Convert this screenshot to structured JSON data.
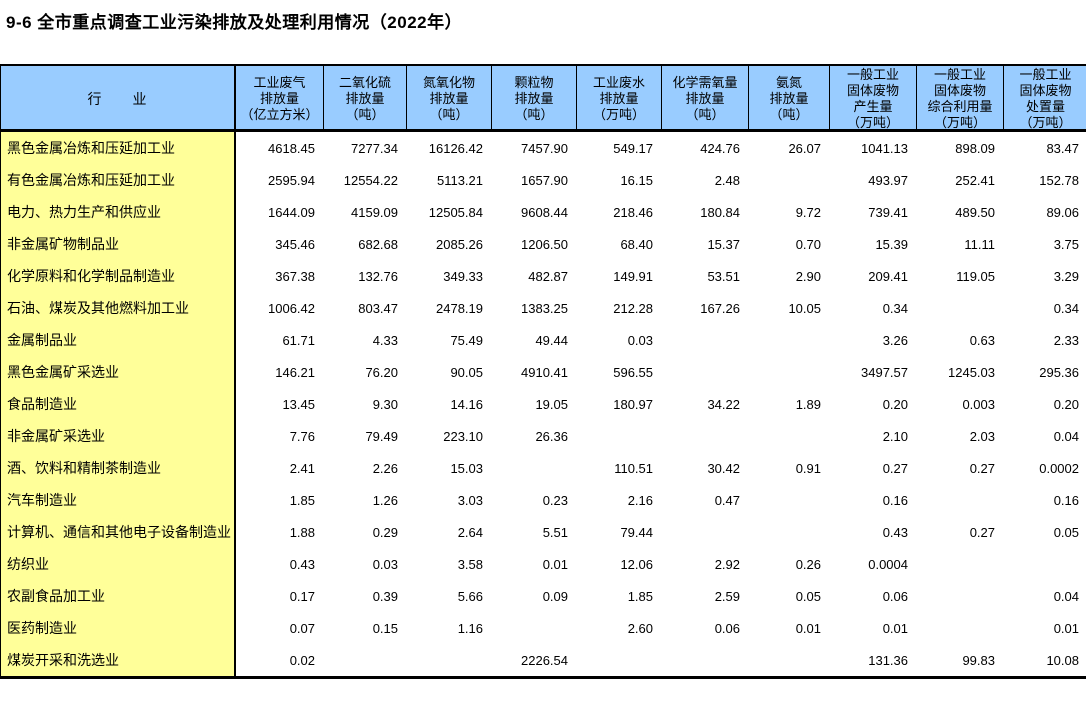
{
  "title": "9-6  全市重点调查工业污染排放及处理利用情况（2022年）",
  "colors": {
    "header_bg": "#99CCFF",
    "row_label_bg": "#FFFF99",
    "border": "#000000",
    "page_bg": "#FFFFFF"
  },
  "table": {
    "columns": [
      {
        "id": "industry",
        "label": "行　　业"
      },
      {
        "id": "waste-gas",
        "label": "工业废气\n排放量\n（亿立方米）"
      },
      {
        "id": "so2",
        "label": "二氧化硫\n排放量\n（吨）"
      },
      {
        "id": "nox",
        "label": "氮氧化物\n排放量\n（吨）"
      },
      {
        "id": "particulates",
        "label": "颗粒物\n排放量\n（吨）"
      },
      {
        "id": "waste-water",
        "label": "工业废水\n排放量\n（万吨）"
      },
      {
        "id": "cod",
        "label": "化学需氧量\n排放量\n（吨）"
      },
      {
        "id": "ammonia-nitrogen",
        "label": "氨氮\n排放量\n（吨）"
      },
      {
        "id": "solid-waste-generated",
        "label": "一般工业\n固体废物\n产生量\n（万吨）"
      },
      {
        "id": "solid-waste-utilized",
        "label": "一般工业\n固体废物\n综合利用量\n（万吨）"
      },
      {
        "id": "solid-waste-disposed",
        "label": "一般工业\n固体废物\n处置量\n（万吨）"
      }
    ],
    "rows": [
      {
        "label": "黑色金属冶炼和压延加工业",
        "values": [
          "4618.45",
          "7277.34",
          "16126.42",
          "7457.90",
          "549.17",
          "424.76",
          "26.07",
          "1041.13",
          "898.09",
          "83.47"
        ]
      },
      {
        "label": "有色金属冶炼和压延加工业",
        "values": [
          "2595.94",
          "12554.22",
          "5113.21",
          "1657.90",
          "16.15",
          "2.48",
          "",
          "493.97",
          "252.41",
          "152.78"
        ]
      },
      {
        "label": "电力、热力生产和供应业",
        "values": [
          "1644.09",
          "4159.09",
          "12505.84",
          "9608.44",
          "218.46",
          "180.84",
          "9.72",
          "739.41",
          "489.50",
          "89.06"
        ]
      },
      {
        "label": "非金属矿物制品业",
        "values": [
          "345.46",
          "682.68",
          "2085.26",
          "1206.50",
          "68.40",
          "15.37",
          "0.70",
          "15.39",
          "11.11",
          "3.75"
        ]
      },
      {
        "label": "化学原料和化学制品制造业",
        "values": [
          "367.38",
          "132.76",
          "349.33",
          "482.87",
          "149.91",
          "53.51",
          "2.90",
          "209.41",
          "119.05",
          "3.29"
        ]
      },
      {
        "label": "石油、煤炭及其他燃料加工业",
        "values": [
          "1006.42",
          "803.47",
          "2478.19",
          "1383.25",
          "212.28",
          "167.26",
          "10.05",
          "0.34",
          "",
          "0.34"
        ]
      },
      {
        "label": "金属制品业",
        "values": [
          "61.71",
          "4.33",
          "75.49",
          "49.44",
          "0.03",
          "",
          "",
          "3.26",
          "0.63",
          "2.33"
        ]
      },
      {
        "label": "黑色金属矿采选业",
        "values": [
          "146.21",
          "76.20",
          "90.05",
          "4910.41",
          "596.55",
          "",
          "",
          "3497.57",
          "1245.03",
          "295.36"
        ]
      },
      {
        "label": "食品制造业",
        "values": [
          "13.45",
          "9.30",
          "14.16",
          "19.05",
          "180.97",
          "34.22",
          "1.89",
          "0.20",
          "0.003",
          "0.20"
        ]
      },
      {
        "label": "非金属矿采选业",
        "values": [
          "7.76",
          "79.49",
          "223.10",
          "26.36",
          "",
          "",
          "",
          "2.10",
          "2.03",
          "0.04"
        ]
      },
      {
        "label": "酒、饮料和精制茶制造业",
        "values": [
          "2.41",
          "2.26",
          "15.03",
          "",
          "110.51",
          "30.42",
          "0.91",
          "0.27",
          "0.27",
          "0.0002"
        ]
      },
      {
        "label": "汽车制造业",
        "values": [
          "1.85",
          "1.26",
          "3.03",
          "0.23",
          "2.16",
          "0.47",
          "",
          "0.16",
          "",
          "0.16"
        ]
      },
      {
        "label": "计算机、通信和其他电子设备制造业",
        "values": [
          "1.88",
          "0.29",
          "2.64",
          "5.51",
          "79.44",
          "",
          "",
          "0.43",
          "0.27",
          "0.05"
        ]
      },
      {
        "label": "纺织业",
        "values": [
          "0.43",
          "0.03",
          "3.58",
          "0.01",
          "12.06",
          "2.92",
          "0.26",
          "0.0004",
          "",
          ""
        ]
      },
      {
        "label": "农副食品加工业",
        "values": [
          "0.17",
          "0.39",
          "5.66",
          "0.09",
          "1.85",
          "2.59",
          "0.05",
          "0.06",
          "",
          "0.04"
        ]
      },
      {
        "label": "医药制造业",
        "values": [
          "0.07",
          "0.15",
          "1.16",
          "",
          "2.60",
          "0.06",
          "0.01",
          "0.01",
          "",
          "0.01"
        ]
      },
      {
        "label": "煤炭开采和洗选业",
        "values": [
          "0.02",
          "",
          "",
          "2226.54",
          "",
          "",
          "",
          "131.36",
          "99.83",
          "10.08"
        ]
      }
    ]
  }
}
